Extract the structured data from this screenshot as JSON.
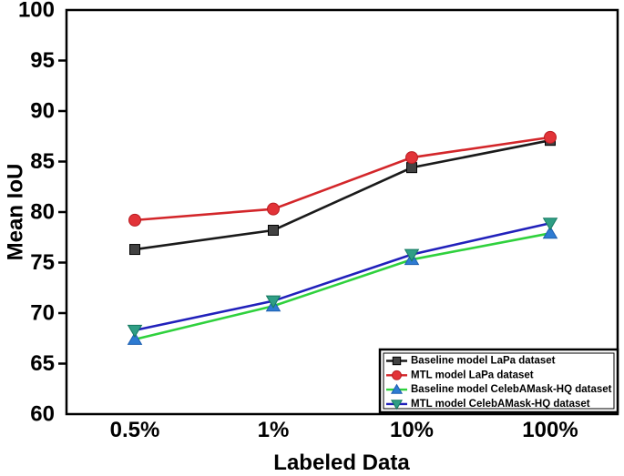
{
  "figure": {
    "background": "#ffffff",
    "frame_color": "#000000"
  },
  "chart_data": {
    "type": "line",
    "title": "",
    "xlabel": "Labeled Data",
    "ylabel": "Mean IoU",
    "categories": [
      "0.5%",
      "1%",
      "10%",
      "100%"
    ],
    "ylim": [
      60,
      100
    ],
    "yticks": [
      60,
      65,
      70,
      75,
      80,
      85,
      90,
      95,
      100
    ],
    "grid": false,
    "legend_position": "inside-bottom-right",
    "series": [
      {
        "id": "baseline-lapa",
        "name": "Baseline model LaPa dataset",
        "line_color": "#1a1a1a",
        "marker": "square",
        "marker_fill": "#424242",
        "marker_edge": "#000000",
        "values": [
          76.3,
          78.2,
          84.4,
          87.1
        ]
      },
      {
        "id": "mtl-lapa",
        "name": "MTL model LaPa dataset",
        "line_color": "#d3262a",
        "marker": "circle",
        "marker_fill": "#e23338",
        "marker_edge": "#b91d22",
        "values": [
          79.2,
          80.3,
          85.4,
          87.4
        ]
      },
      {
        "id": "baseline-celebamask-hq",
        "name": "Baseline model CelebAMask-HQ dataset",
        "line_color": "#2fd13d",
        "marker": "triangle-up",
        "marker_fill": "#2e7bd2",
        "marker_edge": "#1c5fb0",
        "values": [
          67.4,
          70.7,
          75.3,
          77.9
        ]
      },
      {
        "id": "mtl-celebamask-hq",
        "name": "MTL model CelebAMask-HQ dataset",
        "line_color": "#2121bb",
        "marker": "triangle-down",
        "marker_fill": "#2f9e85",
        "marker_edge": "#157a60",
        "values": [
          68.3,
          71.2,
          75.8,
          78.9
        ]
      }
    ]
  }
}
